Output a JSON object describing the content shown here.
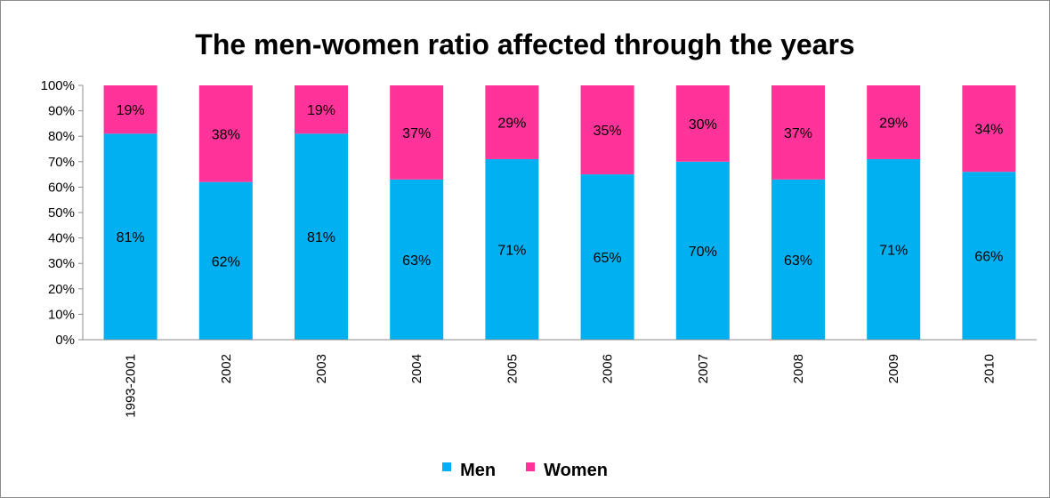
{
  "colors": {
    "men": "#00b0f0",
    "women": "#ff3399"
  },
  "chart_data": {
    "type": "bar",
    "stacked": true,
    "percent_stacked": true,
    "title": "The men-women ratio affected through the years",
    "categories": [
      "1993-2001",
      "2002",
      "2003",
      "2004",
      "2005",
      "2006",
      "2007",
      "2008",
      "2009",
      "2010"
    ],
    "series": [
      {
        "name": "Men",
        "values": [
          81,
          62,
          81,
          63,
          71,
          65,
          70,
          63,
          71,
          66
        ],
        "labels": [
          "81%",
          "62%",
          "81%",
          "63%",
          "71%",
          "65%",
          "70%",
          "63%",
          "71%",
          "66%"
        ]
      },
      {
        "name": "Women",
        "values": [
          19,
          38,
          19,
          37,
          29,
          35,
          30,
          37,
          29,
          34
        ],
        "labels": [
          "19%",
          "38%",
          "19%",
          "37%",
          "29%",
          "35%",
          "30%",
          "37%",
          "29%",
          "34%"
        ]
      }
    ],
    "ylim": [
      0,
      100
    ],
    "yticks": [
      "0%",
      "10%",
      "20%",
      "30%",
      "40%",
      "50%",
      "60%",
      "70%",
      "80%",
      "90%",
      "100%"
    ],
    "grid": false,
    "legend": "bottom"
  }
}
